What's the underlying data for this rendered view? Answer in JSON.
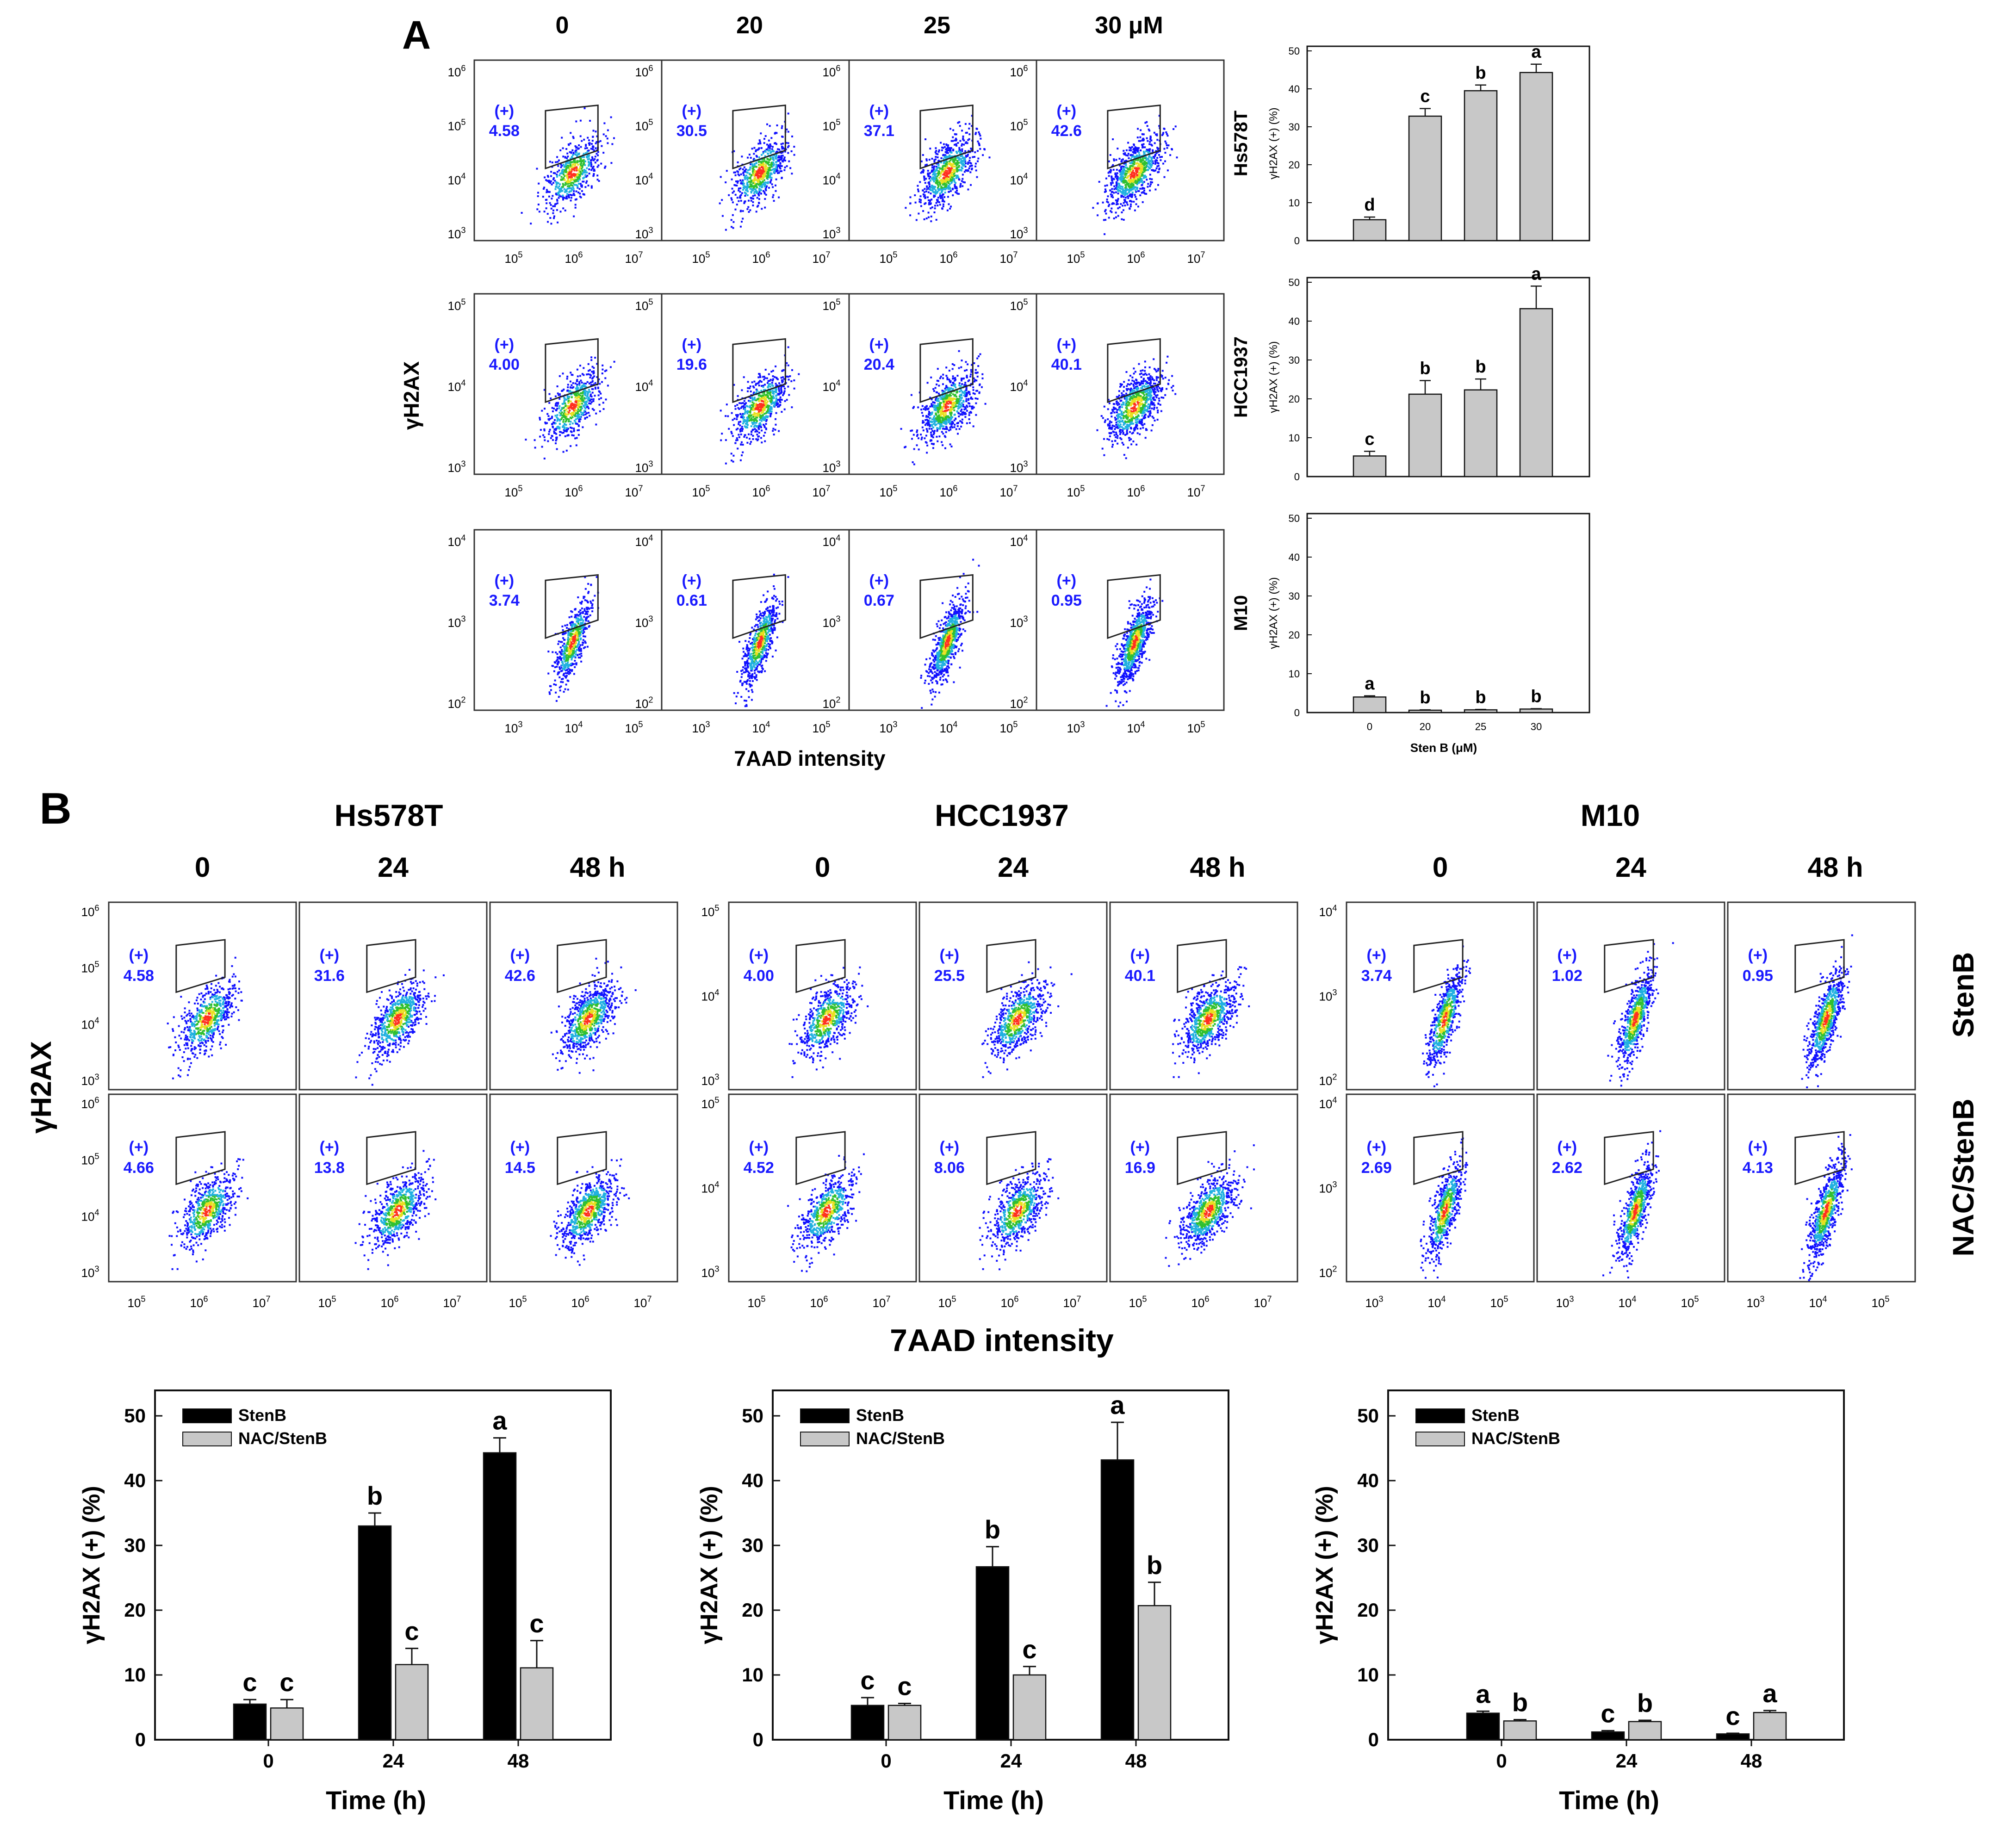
{
  "colors": {
    "gate_label": "#1a1aff",
    "bar_stenb": "#000000",
    "bar_nac": "#c8c8c8",
    "frame": "#333333",
    "dot_blue": "#1010ff",
    "dot_cyan": "#20b0e0",
    "dot_green": "#30c030",
    "dot_yellow": "#e8e020",
    "dot_red": "#ff3020"
  },
  "panelA": {
    "label": "A",
    "columns": [
      "0",
      "20",
      "25",
      "30 μM"
    ],
    "y_axis_label": "γH2AX",
    "x_axis_label": "7AAD intensity",
    "gate_prefix": "(+)",
    "rows": [
      {
        "cell": "Hs578T",
        "values": [
          "4.58",
          "30.5",
          "37.1",
          "42.6"
        ],
        "yticks": [
          {
            "b": "10",
            "e": "3"
          },
          {
            "b": "10",
            "e": "4"
          },
          {
            "b": "10",
            "e": "5"
          },
          {
            "b": "10",
            "e": "6"
          }
        ],
        "xticks": [
          {
            "b": "10",
            "e": "5"
          },
          {
            "b": "10",
            "e": "6"
          },
          {
            "b": "10",
            "e": "7"
          }
        ]
      },
      {
        "cell": "HCC1937",
        "values": [
          "4.00",
          "19.6",
          "20.4",
          "40.1"
        ],
        "yticks": [
          {
            "b": "10",
            "e": "3"
          },
          {
            "b": "10",
            "e": "4"
          },
          {
            "b": "10",
            "e": "5"
          }
        ],
        "xticks": [
          {
            "b": "10",
            "e": "5"
          },
          {
            "b": "10",
            "e": "6"
          },
          {
            "b": "10",
            "e": "7"
          }
        ]
      },
      {
        "cell": "M10",
        "values": [
          "3.74",
          "0.61",
          "0.67",
          "0.95"
        ],
        "yticks": [
          {
            "b": "10",
            "e": "2"
          },
          {
            "b": "10",
            "e": "3"
          },
          {
            "b": "10",
            "e": "4"
          }
        ],
        "xticks": [
          {
            "b": "10",
            "e": "3"
          },
          {
            "b": "10",
            "e": "4"
          },
          {
            "b": "10",
            "e": "5"
          }
        ]
      }
    ]
  },
  "panelB": {
    "label": "B",
    "y_axis_label": "γH2AX",
    "x_axis_label": "7AAD intensity",
    "row_labels": [
      "StenB",
      "NAC/StenB"
    ],
    "gate_prefix": "(+)",
    "groups": [
      {
        "cell": "Hs578T",
        "times": [
          "0",
          "24",
          "48 h"
        ],
        "stenb": [
          "4.58",
          "31.6",
          "42.6"
        ],
        "nac": [
          "4.66",
          "13.8",
          "14.5"
        ],
        "yticks": [
          {
            "b": "10",
            "e": "3"
          },
          {
            "b": "10",
            "e": "4"
          },
          {
            "b": "10",
            "e": "5"
          },
          {
            "b": "10",
            "e": "6"
          }
        ],
        "xticks": [
          {
            "b": "10",
            "e": "5"
          },
          {
            "b": "10",
            "e": "6"
          },
          {
            "b": "10",
            "e": "7"
          }
        ]
      },
      {
        "cell": "HCC1937",
        "times": [
          "0",
          "24",
          "48 h"
        ],
        "stenb": [
          "4.00",
          "25.5",
          "40.1"
        ],
        "nac": [
          "4.52",
          "8.06",
          "16.9"
        ],
        "yticks": [
          {
            "b": "10",
            "e": "3"
          },
          {
            "b": "10",
            "e": "4"
          },
          {
            "b": "10",
            "e": "5"
          }
        ],
        "xticks": [
          {
            "b": "10",
            "e": "5"
          },
          {
            "b": "10",
            "e": "6"
          },
          {
            "b": "10",
            "e": "7"
          }
        ]
      },
      {
        "cell": "M10",
        "times": [
          "0",
          "24",
          "48 h"
        ],
        "stenb": [
          "3.74",
          "1.02",
          "0.95"
        ],
        "nac": [
          "2.69",
          "2.62",
          "4.13"
        ],
        "yticks": [
          {
            "b": "10",
            "e": "2"
          },
          {
            "b": "10",
            "e": "3"
          },
          {
            "b": "10",
            "e": "4"
          }
        ],
        "xticks": [
          {
            "b": "10",
            "e": "3"
          },
          {
            "b": "10",
            "e": "4"
          },
          {
            "b": "10",
            "e": "5"
          }
        ]
      }
    ]
  },
  "chart_data": [
    {
      "type": "bar",
      "panel": "A",
      "row_label": "Hs578T",
      "categories": [
        "0",
        "20",
        "25",
        "30"
      ],
      "values": [
        5.5,
        32.8,
        39.5,
        44.3
      ],
      "errors": [
        0.7,
        2.0,
        1.5,
        2.2
      ],
      "letters": [
        "d",
        "c",
        "b",
        "a"
      ],
      "ylabel": "γH2AX (+) (%)",
      "xlabel": "",
      "ylim": [
        0,
        50
      ],
      "yticks": [
        "0",
        "10",
        "20",
        "30",
        "40",
        "50"
      ],
      "show_xticks": false
    },
    {
      "type": "bar",
      "panel": "A",
      "row_label": "HCC1937",
      "categories": [
        "0",
        "20",
        "25",
        "30"
      ],
      "values": [
        5.3,
        21.2,
        22.3,
        43.2
      ],
      "errors": [
        1.2,
        3.5,
        2.8,
        5.8
      ],
      "letters": [
        "c",
        "b",
        "b",
        "a"
      ],
      "ylabel": "γH2AX (+) (%)",
      "xlabel": "",
      "ylim": [
        0,
        50
      ],
      "yticks": [
        "0",
        "10",
        "20",
        "30",
        "40",
        "50"
      ],
      "show_xticks": false
    },
    {
      "type": "bar",
      "panel": "A",
      "row_label": "M10",
      "categories": [
        "0",
        "20",
        "25",
        "30"
      ],
      "values": [
        4.0,
        0.6,
        0.7,
        0.9
      ],
      "errors": [
        0.3,
        0.1,
        0.1,
        0.1
      ],
      "letters": [
        "a",
        "b",
        "b",
        "b"
      ],
      "ylabel": "γH2AX (+) (%)",
      "xlabel": "Sten B (μM)",
      "ylim": [
        0,
        50
      ],
      "yticks": [
        "0",
        "10",
        "20",
        "30",
        "40",
        "50"
      ],
      "show_xticks": true
    },
    {
      "type": "bar",
      "panel": "B",
      "title": "Hs578T",
      "categories": [
        "0",
        "24",
        "48"
      ],
      "xlabel": "Time (h)",
      "ylabel": "γH2AX (+) (%)",
      "ylim": [
        0,
        50
      ],
      "yticks": [
        "0",
        "10",
        "20",
        "30",
        "40",
        "50"
      ],
      "series": [
        {
          "name": "StenB",
          "values": [
            5.5,
            33.0,
            44.3
          ],
          "errors": [
            0.7,
            2.0,
            2.3
          ],
          "letters": [
            "c",
            "b",
            "a"
          ]
        },
        {
          "name": "NAC/StenB",
          "values": [
            4.9,
            11.6,
            11.1
          ],
          "errors": [
            1.3,
            2.5,
            4.2
          ],
          "letters": [
            "c",
            "c",
            "c"
          ]
        }
      ]
    },
    {
      "type": "bar",
      "panel": "B",
      "title": "HCC1937",
      "categories": [
        "0",
        "24",
        "48"
      ],
      "xlabel": "Time (h)",
      "ylabel": "γH2AX (+) (%)",
      "ylim": [
        0,
        50
      ],
      "yticks": [
        "0",
        "10",
        "20",
        "30",
        "40",
        "50"
      ],
      "series": [
        {
          "name": "StenB",
          "values": [
            5.3,
            26.7,
            43.2
          ],
          "errors": [
            1.2,
            3.1,
            5.8
          ],
          "letters": [
            "c",
            "b",
            "a"
          ]
        },
        {
          "name": "NAC/StenB",
          "values": [
            5.3,
            10.0,
            20.7
          ],
          "errors": [
            0.3,
            1.3,
            3.6
          ],
          "letters": [
            "c",
            "c",
            "b"
          ]
        }
      ]
    },
    {
      "type": "bar",
      "panel": "B",
      "title": "M10",
      "categories": [
        "0",
        "24",
        "48"
      ],
      "xlabel": "Time (h)",
      "ylabel": "γH2AX (+) (%)",
      "ylim": [
        0,
        50
      ],
      "yticks": [
        "0",
        "10",
        "20",
        "30",
        "40",
        "50"
      ],
      "series": [
        {
          "name": "StenB",
          "values": [
            4.1,
            1.2,
            0.9
          ],
          "errors": [
            0.3,
            0.2,
            0.1
          ],
          "letters": [
            "a",
            "c",
            "c"
          ]
        },
        {
          "name": "NAC/StenB",
          "values": [
            2.9,
            2.8,
            4.2
          ],
          "errors": [
            0.2,
            0.2,
            0.3
          ],
          "letters": [
            "b",
            "b",
            "a"
          ]
        }
      ]
    }
  ]
}
